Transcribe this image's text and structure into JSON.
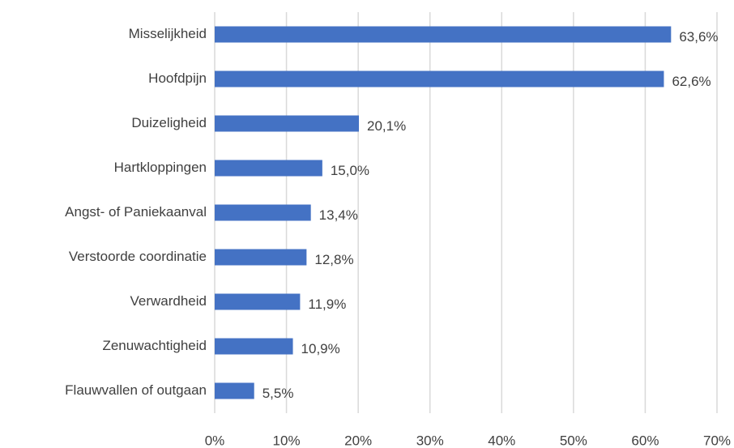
{
  "chart_data": {
    "type": "barh",
    "categories": [
      "Misselijkheid",
      "Hoofdpijn",
      "Duizeligheid",
      "Hartkloppingen",
      "Angst- of Paniekaanval",
      "Verstoorde coordinatie",
      "Verwardheid",
      "Zenuwachtigheid",
      "Flauwvallen of outgaan"
    ],
    "values": [
      63.6,
      62.6,
      20.1,
      15.0,
      13.4,
      12.8,
      11.9,
      10.9,
      5.5
    ],
    "value_labels": [
      "63,6%",
      "62,6%",
      "20,1%",
      "15,0%",
      "13,4%",
      "12,8%",
      "11,9%",
      "10,9%",
      "5,5%"
    ],
    "color": "#4472c4",
    "xlim": [
      0,
      70
    ],
    "xticks": [
      {
        "value": 0,
        "label": "0%"
      },
      {
        "value": 10,
        "label": "10%"
      },
      {
        "value": 20,
        "label": "20%"
      },
      {
        "value": 30,
        "label": "30%"
      },
      {
        "value": 40,
        "label": "40%"
      },
      {
        "value": 50,
        "label": "50%"
      },
      {
        "value": 60,
        "label": "60%"
      },
      {
        "value": 70,
        "label": "70%"
      }
    ],
    "grid": true
  }
}
